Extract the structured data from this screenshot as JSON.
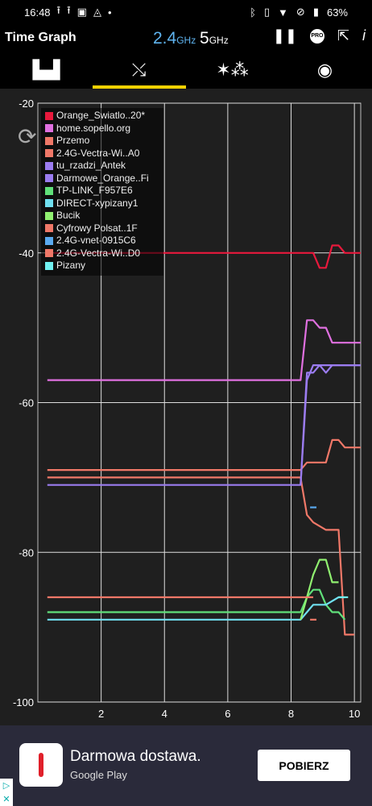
{
  "status": {
    "time": "16:48",
    "battery": "63%",
    "left_icons": [
      "upload-icon",
      "upload-icon",
      "image-icon",
      "navigation-icon",
      "dot-icon"
    ],
    "right_icons": [
      "bluetooth-icon",
      "vibrate-icon",
      "wifi-icon",
      "no-sim-icon",
      "battery-icon"
    ]
  },
  "app": {
    "title": "Time Graph",
    "band_24": "2.4",
    "band_24_unit": "GHz",
    "band_5": "5",
    "band_5_unit": "GHz",
    "pro_label": "PRO"
  },
  "tabs": [
    {
      "icon": "bar-chart-icon",
      "selected": false
    },
    {
      "icon": "time-graph-icon",
      "selected": true
    },
    {
      "icon": "stars-icon",
      "selected": false
    },
    {
      "icon": "signal-radar-icon",
      "selected": false
    }
  ],
  "chart_data": {
    "type": "line",
    "title": "",
    "xlabel": "",
    "ylabel": "",
    "xlim": [
      0,
      10.2
    ],
    "ylim": [
      -100,
      -20
    ],
    "xticks": [
      "2",
      "4",
      "6",
      "8",
      "10"
    ],
    "yticks": [
      "-20",
      "-40",
      "-60",
      "-80",
      "-100"
    ],
    "grid": true,
    "legend_position": "top-left",
    "series": [
      {
        "name": "Orange_Swiatlo..20*",
        "color": "#e8193c",
        "points": [
          [
            0.5,
            -40
          ],
          [
            8.5,
            -40
          ],
          [
            8.7,
            -40
          ],
          [
            8.9,
            -42
          ],
          [
            9.1,
            -42
          ],
          [
            9.3,
            -39
          ],
          [
            9.5,
            -39
          ],
          [
            9.7,
            -40
          ],
          [
            10.2,
            -40
          ]
        ]
      },
      {
        "name": "home.sopello.org",
        "color": "#e070e0",
        "points": [
          [
            0.3,
            -57
          ],
          [
            8.3,
            -57
          ],
          [
            8.5,
            -49
          ],
          [
            8.7,
            -49
          ],
          [
            8.9,
            -50
          ],
          [
            9.1,
            -50
          ],
          [
            9.3,
            -52
          ],
          [
            10.2,
            -52
          ]
        ]
      },
      {
        "name": "Przemo",
        "color": "#f07868",
        "points": [
          [
            0.3,
            -69
          ],
          [
            8.3,
            -69
          ],
          [
            8.5,
            -68
          ],
          [
            8.7,
            -68
          ],
          [
            9.1,
            -68
          ],
          [
            9.3,
            -65
          ],
          [
            9.5,
            -65
          ],
          [
            9.7,
            -66
          ],
          [
            10.2,
            -66
          ]
        ]
      },
      {
        "name": "2.4G-Vectra-Wi..A0",
        "color": "#f07868",
        "points": [
          [
            0.3,
            -70
          ],
          [
            8.3,
            -70
          ],
          [
            8.5,
            -75
          ],
          [
            8.7,
            -76
          ],
          [
            9.1,
            -77
          ],
          [
            9.5,
            -77
          ],
          [
            9.7,
            -91
          ],
          [
            10.0,
            -91
          ]
        ]
      },
      {
        "name": "tu_rzadzi_Antek",
        "color": "#9b7cf0",
        "points": [
          [
            0.3,
            -71
          ],
          [
            8.3,
            -71
          ],
          [
            8.5,
            -56
          ],
          [
            8.7,
            -56
          ],
          [
            8.9,
            -55
          ],
          [
            9.1,
            -55
          ],
          [
            10.2,
            -55
          ]
        ]
      },
      {
        "name": "Darmowe_Orange..Fi",
        "color": "#9b7cf0",
        "points": [
          [
            8.3,
            -71
          ],
          [
            8.5,
            -57
          ],
          [
            8.7,
            -55
          ],
          [
            8.9,
            -55
          ],
          [
            9.1,
            -56
          ],
          [
            9.3,
            -55
          ],
          [
            10.2,
            -55
          ]
        ]
      },
      {
        "name": "TP-LINK_F957E6",
        "color": "#60e07a",
        "points": [
          [
            0.3,
            -88
          ],
          [
            8.3,
            -88
          ],
          [
            8.5,
            -86
          ],
          [
            8.7,
            -85
          ],
          [
            8.9,
            -85
          ],
          [
            9.1,
            -87
          ],
          [
            9.3,
            -88
          ],
          [
            9.5,
            -88
          ],
          [
            9.7,
            -89
          ]
        ]
      },
      {
        "name": "DIRECT-xypizany1",
        "color": "#70e0f0",
        "points": [
          [
            0.3,
            -89
          ],
          [
            8.3,
            -89
          ],
          [
            8.5,
            -88
          ],
          [
            8.7,
            -87
          ],
          [
            9.1,
            -87
          ],
          [
            9.5,
            -86
          ],
          [
            9.7,
            -86
          ]
        ]
      },
      {
        "name": "Bucik",
        "color": "#90f070",
        "points": [
          [
            8.3,
            -89
          ],
          [
            8.5,
            -86
          ],
          [
            8.7,
            -83
          ],
          [
            8.9,
            -81
          ],
          [
            9.1,
            -81
          ],
          [
            9.3,
            -84
          ],
          [
            9.5,
            -84
          ]
        ]
      },
      {
        "name": "Cyfrowy Polsat..1F",
        "color": "#f07868",
        "points": [
          [
            0.3,
            -86
          ],
          [
            8.3,
            -86
          ],
          [
            8.5,
            -86
          ],
          [
            8.7,
            -86
          ]
        ]
      },
      {
        "name": "2.4G-vnet-0915C6",
        "color": "#5aaaf0",
        "points": [
          [
            8.6,
            -74
          ],
          [
            8.8,
            -74
          ]
        ]
      },
      {
        "name": "2.4G-Vectra-Wi..D0",
        "color": "#f07868",
        "points": [
          [
            8.6,
            -89
          ],
          [
            8.8,
            -89
          ]
        ]
      },
      {
        "name": "Pizany",
        "color": "#70f0f0",
        "points": [
          [
            9.5,
            -86
          ],
          [
            9.8,
            -86
          ]
        ]
      }
    ]
  },
  "ad": {
    "title": "Darmowa dostawa.",
    "subtitle": "Google Play",
    "button": "POBIERZ"
  }
}
